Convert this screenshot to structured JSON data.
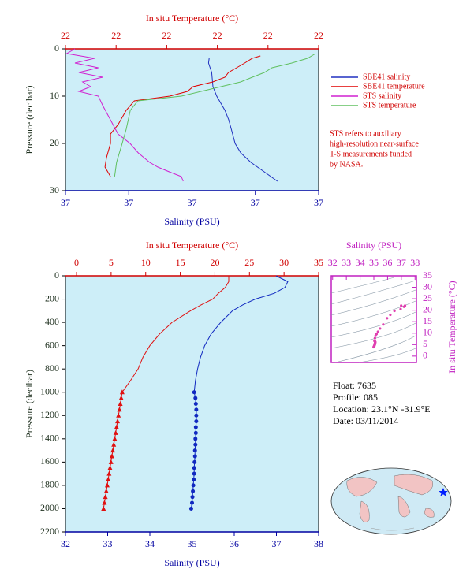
{
  "chart_data": [
    {
      "type": "profile",
      "x_label": "Salinity (PSU)",
      "x2_label": "In situ Temperature (°C)",
      "y_label": "Pressure (decibar)",
      "xlim": [
        36.8,
        37.2
      ],
      "xticks": [
        {
          "value": 36.8,
          "label": "37"
        },
        {
          "value": 36.9,
          "label": "37"
        },
        {
          "value": 37.0,
          "label": "37"
        },
        {
          "value": 37.1,
          "label": "37"
        },
        {
          "value": 37.2,
          "label": "37"
        }
      ],
      "x2lim": [
        21.8,
        22.3
      ],
      "x2ticks": [
        {
          "value": 21.8,
          "label": "22"
        },
        {
          "value": 21.9,
          "label": "22"
        },
        {
          "value": 22.0,
          "label": "22"
        },
        {
          "value": 22.1,
          "label": "22"
        },
        {
          "value": 22.2,
          "label": "22"
        },
        {
          "value": 22.3,
          "label": "22"
        }
      ],
      "ylim": [
        0,
        30
      ],
      "y_inverted": true,
      "yticks": [
        0,
        10,
        20,
        30
      ],
      "legend": "right",
      "series": [
        {
          "name": "SBE41 salinity",
          "color": "#2030c0",
          "axis": "x",
          "pressure": [
            2,
            3,
            5,
            8,
            10,
            13,
            15,
            17,
            20,
            22,
            24,
            26,
            28
          ],
          "values": [
            37.027,
            37.026,
            37.031,
            37.033,
            37.039,
            37.052,
            37.058,
            37.062,
            37.068,
            37.077,
            37.093,
            37.114,
            37.135
          ]
        },
        {
          "name": "SBE41 temperature",
          "color": "#e00000",
          "axis": "x2",
          "pressure": [
            1.5,
            2,
            3,
            4,
            5,
            6,
            7,
            8,
            9,
            10,
            11,
            13,
            16,
            18,
            20,
            23,
            25,
            27
          ],
          "values": [
            22.185,
            22.169,
            22.154,
            22.138,
            22.122,
            22.115,
            22.091,
            22.052,
            22.041,
            22.006,
            21.936,
            21.92,
            21.904,
            21.889,
            21.889,
            21.881,
            21.878,
            21.889
          ]
        },
        {
          "name": "STS salinity",
          "color": "#d020d0",
          "axis": "x",
          "pressure": [
            0,
            1,
            2,
            3,
            4,
            5,
            6,
            7,
            8,
            9,
            10,
            12,
            15,
            18,
            20,
            22,
            24,
            25,
            26,
            27,
            28
          ],
          "values": [
            36.815,
            36.802,
            36.846,
            36.815,
            36.852,
            36.821,
            36.859,
            36.827,
            36.84,
            36.821,
            36.852,
            36.859,
            36.871,
            36.883,
            36.902,
            36.915,
            36.933,
            36.946,
            36.964,
            36.983,
            36.986
          ]
        },
        {
          "name": "STS temperature",
          "color": "#60c060",
          "axis": "x2",
          "pressure": [
            1,
            2,
            3,
            4,
            5,
            6,
            7,
            8,
            9,
            10,
            11,
            13,
            17,
            20,
            24,
            27
          ],
          "values": [
            22.294,
            22.278,
            22.247,
            22.208,
            22.193,
            22.169,
            22.146,
            22.107,
            22.068,
            22.029,
            21.943,
            21.928,
            21.92,
            21.912,
            21.901,
            21.897
          ]
        }
      ],
      "note": [
        "STS refers to auxiliary",
        "high-resolution near-surface",
        "T-S measurements funded",
        "by NASA."
      ]
    },
    {
      "type": "profile",
      "x_label": "Salinity (PSU)",
      "x2_label": "In situ Temperature (°C)",
      "y_label": "Pressure (decibar)",
      "xlim": [
        32,
        38
      ],
      "xticks": [
        32,
        33,
        34,
        35,
        36,
        37,
        38
      ],
      "x2lim": [
        -1.6,
        35
      ],
      "x2ticks": [
        0,
        5,
        10,
        15,
        20,
        25,
        30,
        35
      ],
      "ylim": [
        0,
        2200
      ],
      "y_inverted": true,
      "yticks": [
        0,
        200,
        400,
        600,
        800,
        1000,
        1200,
        1400,
        1600,
        1800,
        2000,
        2200
      ],
      "series": [
        {
          "color": "#1028c0",
          "axis": "x",
          "pressure": [
            0,
            50,
            100,
            150,
            200,
            250,
            300,
            400,
            500,
            600,
            700,
            800,
            900,
            1000
          ],
          "values": [
            36.99,
            37.27,
            37.2,
            36.95,
            36.5,
            36.2,
            35.96,
            35.68,
            35.45,
            35.3,
            35.2,
            35.13,
            35.08,
            35.05
          ]
        },
        {
          "color": "#1028c0",
          "axis": "x",
          "marker": "circle",
          "pressure": [
            1000,
            1050,
            1100,
            1150,
            1200,
            1250,
            1300,
            1350,
            1400,
            1450,
            1500,
            1550,
            1600,
            1650,
            1700,
            1750,
            1800,
            1850,
            1900,
            1950,
            2000
          ],
          "values": [
            35.05,
            35.08,
            35.09,
            35.1,
            35.1,
            35.1,
            35.09,
            35.09,
            35.08,
            35.08,
            35.07,
            35.07,
            35.06,
            35.05,
            35.05,
            35.04,
            35.03,
            35.02,
            35.01,
            35.0,
            34.98
          ]
        },
        {
          "color": "#e01010",
          "axis": "x2",
          "pressure": [
            0,
            50,
            100,
            150,
            200,
            250,
            300,
            400,
            500,
            600,
            700,
            800,
            900,
            1000
          ],
          "values": [
            22.0,
            22.0,
            21.5,
            20.5,
            19.7,
            18.0,
            16.5,
            13.8,
            12.0,
            10.6,
            9.6,
            8.9,
            7.8,
            6.6
          ]
        },
        {
          "color": "#e01010",
          "axis": "x2",
          "marker": "triangle",
          "pressure": [
            1000,
            1050,
            1100,
            1150,
            1200,
            1250,
            1300,
            1350,
            1400,
            1450,
            1500,
            1550,
            1600,
            1650,
            1700,
            1750,
            1800,
            1850,
            1900,
            1950,
            2000
          ],
          "values": [
            6.6,
            6.46,
            6.33,
            6.2,
            6.06,
            5.93,
            5.79,
            5.66,
            5.52,
            5.38,
            5.25,
            5.11,
            4.98,
            4.84,
            4.71,
            4.57,
            4.44,
            4.3,
            4.17,
            4.03,
            3.9
          ]
        }
      ]
    },
    {
      "type": "ts",
      "color": "#e040b0",
      "x_label": "Salinity (PSU)",
      "y_label": "In situ Temperature (°C)",
      "xlim": [
        31.9,
        38.1
      ],
      "xticks": [
        32,
        33,
        34,
        35,
        36,
        37,
        38
      ],
      "ylim": [
        -2.8,
        35
      ],
      "yticks": [
        0,
        5,
        10,
        15,
        20,
        25,
        30,
        35
      ]
    }
  ],
  "float_info": [
    "Float:  7635",
    "Profile:  085",
    "Location:  23.1°N  -31.9°E",
    "Date:  03/11/2014"
  ]
}
